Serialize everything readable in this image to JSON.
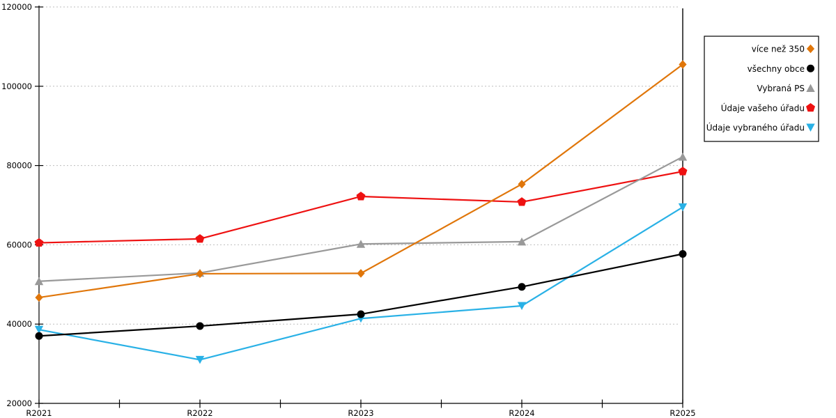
{
  "chart_data": {
    "type": "line",
    "title": "",
    "xlabel": "",
    "ylabel": "",
    "categories": [
      "R2021",
      "R2022",
      "R2023",
      "R2024",
      "R2025"
    ],
    "series": [
      {
        "name": "více než 350",
        "color": "#E0760A",
        "marker": "diamond",
        "values": [
          46700,
          52700,
          52800,
          75300,
          105500
        ]
      },
      {
        "name": "všechny obce",
        "color": "#000000",
        "marker": "circle",
        "values": [
          37000,
          39500,
          42500,
          49400,
          57700
        ]
      },
      {
        "name": "Vybraná PS",
        "color": "#999999",
        "marker": "triangle-up",
        "values": [
          50800,
          52900,
          60200,
          60800,
          82200
        ]
      },
      {
        "name": "Údaje vašeho úřadu",
        "color": "#EE1111",
        "marker": "pentagon",
        "values": [
          60500,
          61500,
          72200,
          70800,
          78500
        ]
      },
      {
        "name": "Údaje vybraného úřadu",
        "color": "#29B1E6",
        "marker": "triangle-down",
        "values": [
          38600,
          31000,
          41400,
          44600,
          69500
        ]
      }
    ],
    "ylim": [
      20000,
      120000
    ],
    "ytick_step": 20000,
    "yticklabels": [
      "20000",
      "40000",
      "60000",
      "80000",
      "100000",
      "120000"
    ],
    "grid": "horizontal-dashed",
    "legend_position": "right",
    "legend_border": true
  },
  "colors": {
    "background": "#FFFFFF",
    "axis": "#000000",
    "gridline": "#BDBDBD",
    "legend_border": "#000000",
    "legend_background": "#FFFFFF"
  }
}
